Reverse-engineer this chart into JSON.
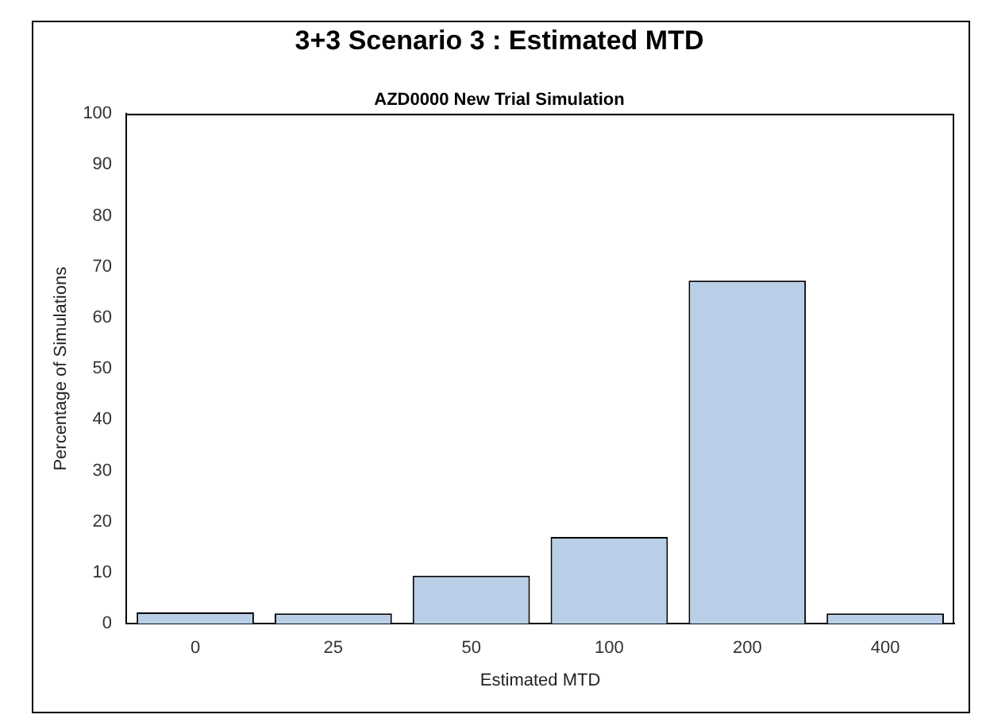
{
  "chart_data": {
    "type": "bar",
    "title": "3+3 Scenario 3 : Estimated MTD",
    "subtitle": "AZD0000 New Trial Simulation",
    "xlabel": "Estimated MTD",
    "ylabel": "Percentage of Simulations",
    "categories": [
      "0",
      "25",
      "50",
      "100",
      "200",
      "400"
    ],
    "values": [
      2.2,
      2.0,
      9.4,
      17.0,
      67.3,
      2.0
    ],
    "color": "#b9cfe7",
    "ylim": [
      0,
      100
    ],
    "yticks": [
      0,
      10,
      20,
      30,
      40,
      50,
      60,
      70,
      80,
      90,
      100
    ],
    "grid": false,
    "legend": false
  }
}
